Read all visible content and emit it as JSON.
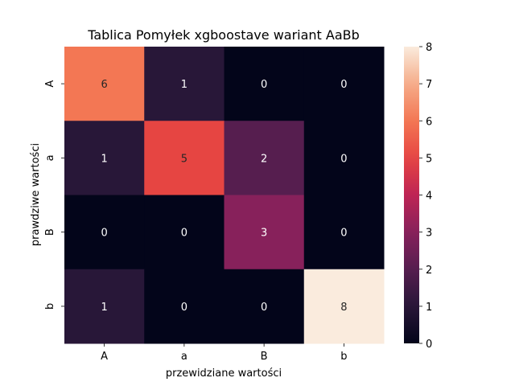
{
  "chart_data": {
    "type": "heatmap",
    "title": "Tablica Pomyłek xgboostave wariant AaBb",
    "xlabel": "przewidziane wartości",
    "ylabel": "prawdziwe wartości",
    "x_categories": [
      "A",
      "a",
      "B",
      "b"
    ],
    "y_categories": [
      "A",
      "a",
      "B",
      "b"
    ],
    "values": [
      [
        6,
        1,
        0,
        0
      ],
      [
        1,
        5,
        2,
        0
      ],
      [
        0,
        0,
        3,
        0
      ],
      [
        1,
        0,
        0,
        8
      ]
    ],
    "colorbar": {
      "min": 0,
      "max": 8,
      "ticks": [
        "0",
        "1",
        "2",
        "3",
        "4",
        "5",
        "6",
        "7",
        "8"
      ]
    },
    "colormap": "rocket",
    "annotations": true,
    "grid": false
  }
}
